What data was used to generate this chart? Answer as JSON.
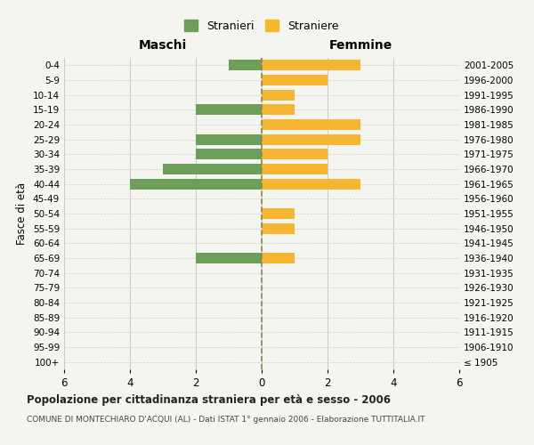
{
  "age_groups": [
    "100+",
    "95-99",
    "90-94",
    "85-89",
    "80-84",
    "75-79",
    "70-74",
    "65-69",
    "60-64",
    "55-59",
    "50-54",
    "45-49",
    "40-44",
    "35-39",
    "30-34",
    "25-29",
    "20-24",
    "15-19",
    "10-14",
    "5-9",
    "0-4"
  ],
  "birth_years": [
    "≤ 1905",
    "1906-1910",
    "1911-1915",
    "1916-1920",
    "1921-1925",
    "1926-1930",
    "1931-1935",
    "1936-1940",
    "1941-1945",
    "1946-1950",
    "1951-1955",
    "1956-1960",
    "1961-1965",
    "1966-1970",
    "1971-1975",
    "1976-1980",
    "1981-1985",
    "1986-1990",
    "1991-1995",
    "1996-2000",
    "2001-2005"
  ],
  "maschi": [
    0,
    0,
    0,
    0,
    0,
    0,
    0,
    2,
    0,
    0,
    0,
    0,
    4,
    3,
    2,
    2,
    0,
    2,
    0,
    0,
    1
  ],
  "femmine": [
    0,
    0,
    0,
    0,
    0,
    0,
    0,
    1,
    0,
    1,
    1,
    0,
    3,
    2,
    2,
    3,
    3,
    1,
    1,
    2,
    3
  ],
  "male_color": "#6d9e5a",
  "female_color": "#f5b731",
  "grid_color": "#cccccc",
  "center_line_color": "#888855",
  "bg_color": "#f5f5f0",
  "title": "Popolazione per cittadinanza straniera per età e sesso - 2006",
  "subtitle": "COMUNE DI MONTECHIARO D'ACQUI (AL) - Dati ISTAT 1° gennaio 2006 - Elaborazione TUTTITALIA.IT",
  "xlabel_left": "Maschi",
  "xlabel_right": "Femmine",
  "ylabel_left": "Fasce di età",
  "legend_male": "Stranieri",
  "legend_female": "Straniere",
  "xlim": 6
}
